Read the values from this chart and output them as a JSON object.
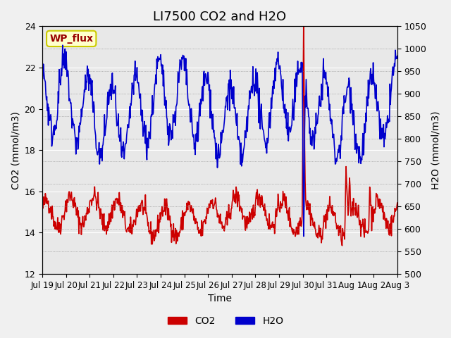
{
  "title": "LI7500 CO2 and H2O",
  "xlabel": "Time",
  "ylabel_left": "CO2 (mmol/m3)",
  "ylabel_right": "H2O (mmol/m3)",
  "ylim_left": [
    12,
    24
  ],
  "ylim_right": [
    500,
    1050
  ],
  "yticks_left": [
    12,
    14,
    16,
    18,
    20,
    22,
    24
  ],
  "yticks_right": [
    500,
    550,
    600,
    650,
    700,
    750,
    800,
    850,
    900,
    950,
    1000,
    1050
  ],
  "xtick_labels": [
    "Jul 19",
    "Jul 20",
    "Jul 21",
    "Jul 22",
    "Jul 23",
    "Jul 24",
    "Jul 25",
    "Jul 26",
    "Jul 27",
    "Jul 28",
    "Jul 29",
    "Jul 30",
    "Jul 31",
    "Aug 1",
    "Aug 2",
    "Aug 3"
  ],
  "co2_color": "#cc0000",
  "h2o_color": "#0000cc",
  "legend_co2": "CO2",
  "legend_h2o": "H2O",
  "wp_flux_label": "WP_flux",
  "fig_bg_color": "#f0f0f0",
  "plot_bg_color": "#e8e8e8",
  "title_fontsize": 13,
  "axis_fontsize": 10,
  "tick_fontsize": 9,
  "line_width": 1.2,
  "legend_fontsize": 10
}
